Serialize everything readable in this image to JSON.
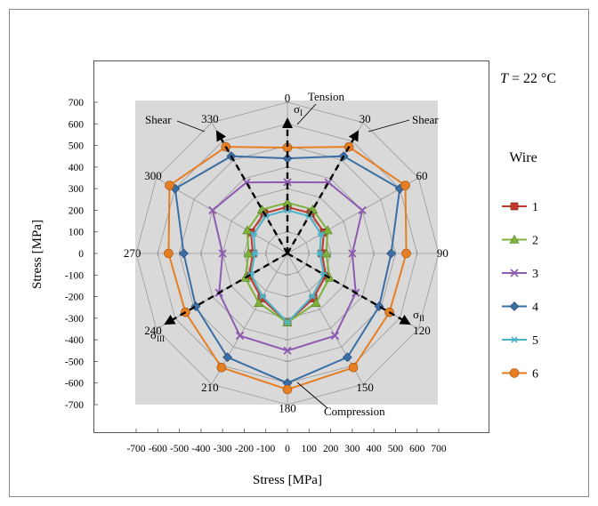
{
  "chart_data": {
    "type": "radar",
    "angles_deg": [
      0,
      30,
      60,
      90,
      120,
      150,
      180,
      210,
      240,
      270,
      300,
      330
    ],
    "series": [
      {
        "name": "1",
        "color": "#c0392b",
        "marker": "square",
        "values": [
          215,
          215,
          195,
          160,
          205,
          240,
          320,
          240,
          205,
          160,
          195,
          215
        ]
      },
      {
        "name": "2",
        "color": "#7fb23a",
        "marker": "triangle",
        "values": [
          235,
          235,
          215,
          180,
          225,
          265,
          320,
          265,
          225,
          180,
          215,
          235
        ]
      },
      {
        "name": "3",
        "color": "#8e5bb0",
        "marker": "x",
        "values": [
          330,
          380,
          400,
          300,
          365,
          440,
          450,
          440,
          365,
          300,
          400,
          380
        ]
      },
      {
        "name": "4",
        "color": "#3a6ea5",
        "marker": "diamond",
        "values": [
          440,
          520,
          600,
          480,
          490,
          555,
          600,
          555,
          490,
          480,
          600,
          520
        ]
      },
      {
        "name": "5",
        "color": "#4bb3c8",
        "marker": "star",
        "values": [
          200,
          200,
          180,
          150,
          195,
          230,
          320,
          230,
          195,
          150,
          180,
          200
        ]
      },
      {
        "name": "6",
        "color": "#e67e22",
        "marker": "circle",
        "values": [
          490,
          570,
          630,
          550,
          545,
          610,
          630,
          610,
          545,
          550,
          630,
          570
        ]
      }
    ],
    "rlim": [
      0,
      700
    ],
    "rings": [
      100,
      200,
      300,
      400,
      500,
      600,
      700
    ],
    "xlabel": "Stress [MPa]",
    "ylabel": "Stress [MPa]",
    "xticks": [
      "-700",
      "-600",
      "-500",
      "-400",
      "-300",
      "-200",
      "-100",
      "0",
      "100",
      "200",
      "300",
      "400",
      "500",
      "600",
      "700"
    ],
    "yticks": [
      "700",
      "600",
      "500",
      "400",
      "300",
      "200",
      "100",
      "0",
      "-100",
      "-200",
      "-300",
      "-400",
      "-500",
      "-600",
      "-700"
    ],
    "xlim": [
      -700,
      700
    ],
    "ylim": [
      -700,
      700
    ],
    "angle_labels": [
      "0",
      "30",
      "60",
      "90",
      "120",
      "150",
      "180",
      "210",
      "240",
      "270",
      "300",
      "330"
    ],
    "legend_title": "Wire",
    "legend_position": "right",
    "temperature": "T = 22 °C",
    "annotations": {
      "tension": "Tension",
      "compression": "Compression",
      "shear_left": "Shear",
      "shear_right": "Shear",
      "sigma_1": "σI",
      "sigma_2": "σII",
      "sigma_3": "σIII"
    },
    "grid": true
  }
}
